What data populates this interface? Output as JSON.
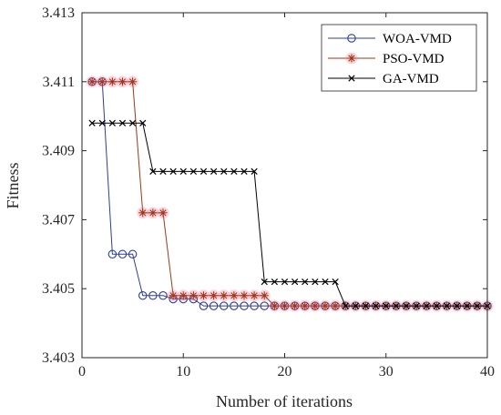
{
  "chart_data": {
    "type": "line",
    "title": "",
    "xlabel": "Number of iterations",
    "ylabel": "Fitness",
    "xlim": [
      0,
      40
    ],
    "ylim": [
      3.403,
      3.413
    ],
    "x_ticks": [
      "0",
      "10",
      "20",
      "30",
      "40"
    ],
    "y_ticks": [
      "3.403",
      "3.405",
      "3.407",
      "3.409",
      "3.411",
      "3.413"
    ],
    "grid": false,
    "legend_position": "top-right",
    "x": [
      1,
      2,
      3,
      4,
      5,
      6,
      7,
      8,
      9,
      10,
      11,
      12,
      13,
      14,
      15,
      16,
      17,
      18,
      19,
      20,
      21,
      22,
      23,
      24,
      25,
      26,
      27,
      28,
      29,
      30,
      31,
      32,
      33,
      34,
      35,
      36,
      37,
      38,
      39,
      40
    ],
    "series": [
      {
        "name": "WOA-VMD",
        "color": "#2f3f8f",
        "marker": "circle",
        "values": [
          3.411,
          3.411,
          3.406,
          3.406,
          3.406,
          3.4048,
          3.4048,
          3.4048,
          3.4047,
          3.4047,
          3.4047,
          3.4045,
          3.4045,
          3.4045,
          3.4045,
          3.4045,
          3.4045,
          3.4045,
          3.4045,
          3.4045,
          3.4045,
          3.4045,
          3.4045,
          3.4045,
          3.4045,
          3.4045,
          3.4045,
          3.4045,
          3.4045,
          3.4045,
          3.4045,
          3.4045,
          3.4045,
          3.4045,
          3.4045,
          3.4045,
          3.4045,
          3.4045,
          3.4045,
          3.4045
        ]
      },
      {
        "name": "PSO-VMD",
        "color": "#a0361a",
        "marker": "asterisk",
        "values": [
          3.411,
          3.411,
          3.411,
          3.411,
          3.411,
          3.4072,
          3.4072,
          3.4072,
          3.4048,
          3.4048,
          3.4048,
          3.4048,
          3.4048,
          3.4048,
          3.4048,
          3.4048,
          3.4048,
          3.4048,
          3.4045,
          3.4045,
          3.4045,
          3.4045,
          3.4045,
          3.4045,
          3.4045,
          3.4045,
          3.4045,
          3.4045,
          3.4045,
          3.4045,
          3.4045,
          3.4045,
          3.4045,
          3.4045,
          3.4045,
          3.4045,
          3.4045,
          3.4045,
          3.4045,
          3.4045
        ]
      },
      {
        "name": "GA-VMD",
        "color": "#000000",
        "marker": "x",
        "values": [
          3.4098,
          3.4098,
          3.4098,
          3.4098,
          3.4098,
          3.4098,
          3.4084,
          3.4084,
          3.4084,
          3.4084,
          3.4084,
          3.4084,
          3.4084,
          3.4084,
          3.4084,
          3.4084,
          3.4084,
          3.4052,
          3.4052,
          3.4052,
          3.4052,
          3.4052,
          3.4052,
          3.4052,
          3.4052,
          3.4045,
          3.4045,
          3.4045,
          3.4045,
          3.4045,
          3.4045,
          3.4045,
          3.4045,
          3.4045,
          3.4045,
          3.4045,
          3.4045,
          3.4045,
          3.4045,
          3.4045
        ]
      }
    ]
  }
}
